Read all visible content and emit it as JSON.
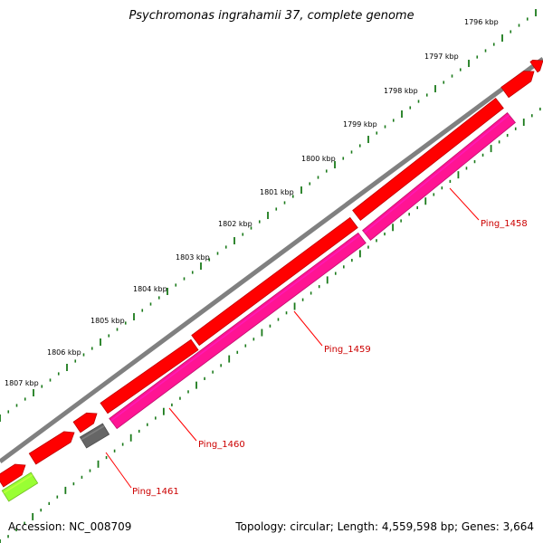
{
  "title": "Psychromonas ingrahamii 37, complete genome",
  "footer": {
    "accession": "Accession: NC_008709",
    "topology": "Topology: circular; Length: 4,559,598 bp; Genes: 3,664"
  },
  "scale_labels": [
    "1796 kbp",
    "1797 kbp",
    "1798 kbp",
    "1799 kbp",
    "1800 kbp",
    "1801 kbp",
    "1802 kbp",
    "1803 kbp",
    "1804 kbp",
    "1805 kbp",
    "1806 kbp",
    "1807 kbp"
  ],
  "gene_labels": [
    "Ping_1458",
    "Ping_1459",
    "Ping_1460",
    "Ping_1461"
  ],
  "colors": {
    "backbone": "#808080",
    "cds_forward": "#ff0000",
    "cds_reverse": "#ff1493",
    "gene_grey": "#666666",
    "gene_green": "#99ff33",
    "ticks": "#1a7a1a",
    "label_line": "#ff0000"
  }
}
